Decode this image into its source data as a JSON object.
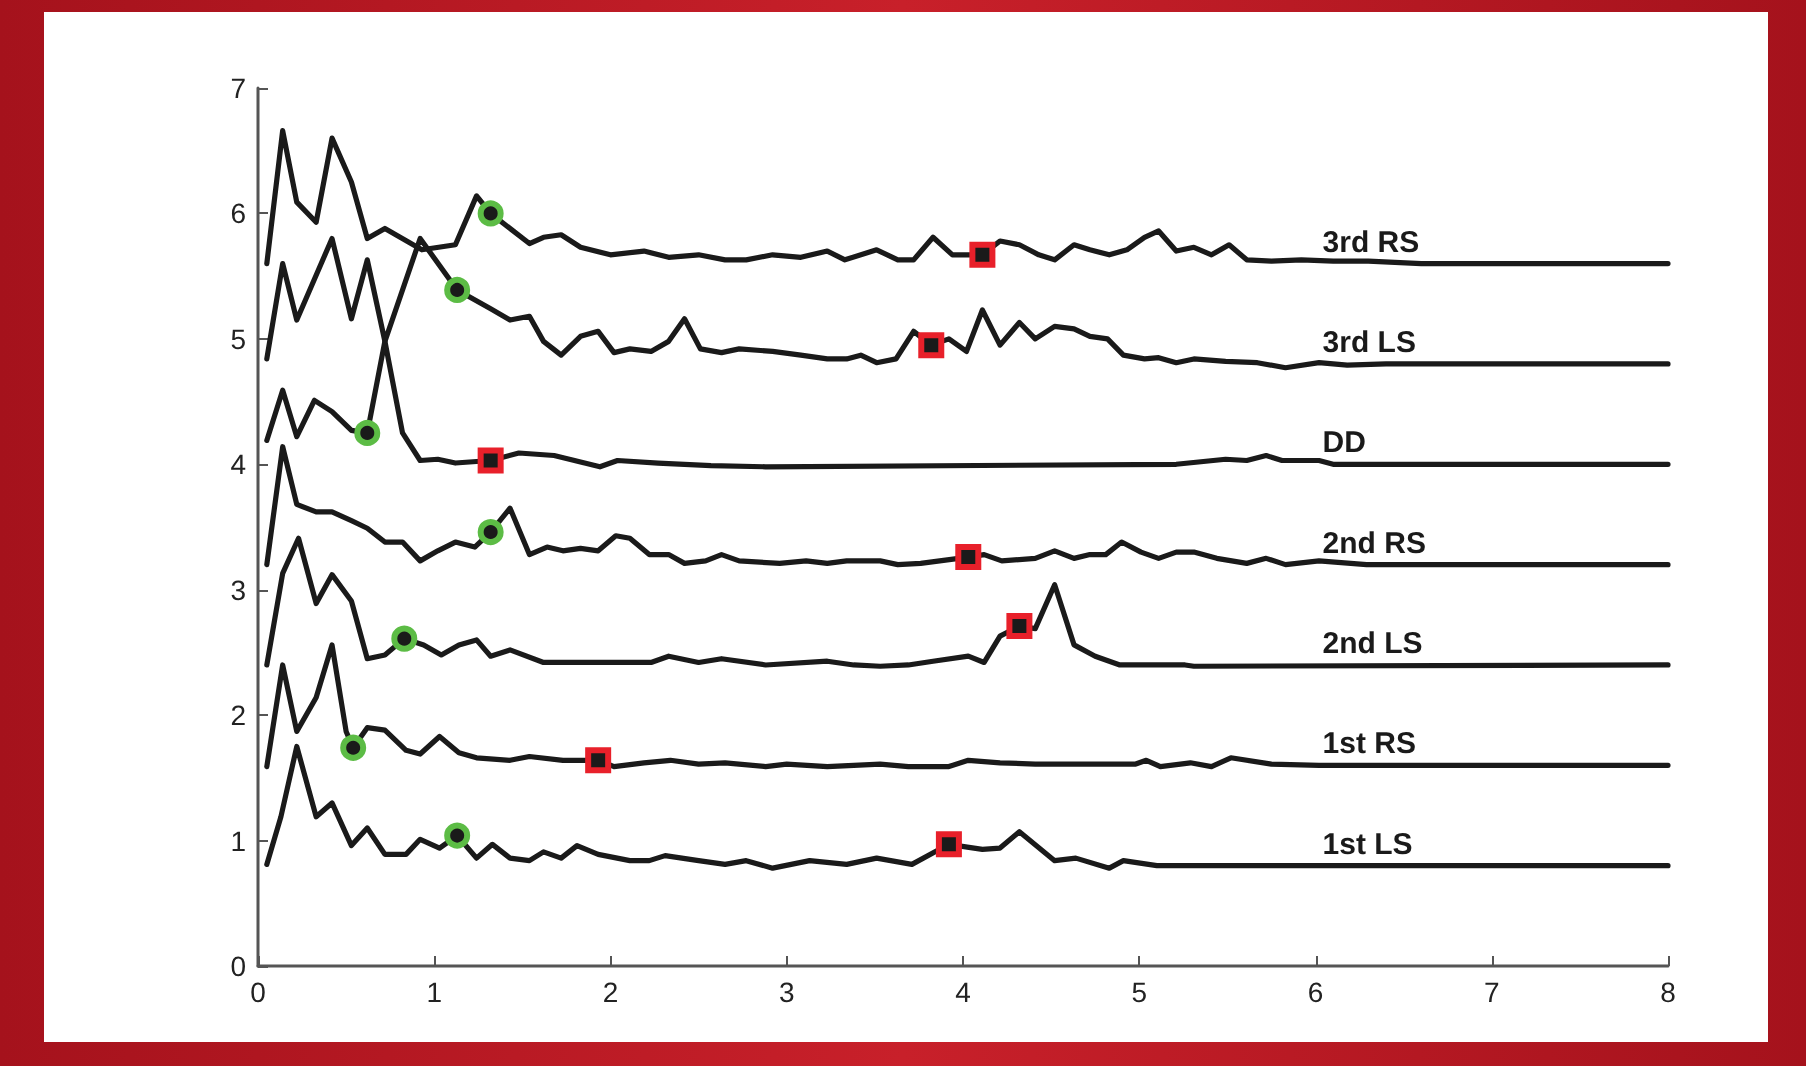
{
  "chart_data": {
    "type": "line",
    "xlim": [
      0,
      8
    ],
    "ylim": [
      0,
      7
    ],
    "xticks": [
      0,
      1,
      2,
      3,
      4,
      5,
      6,
      7,
      8
    ],
    "yticks": [
      0,
      1,
      2,
      3,
      4,
      5,
      6,
      7
    ],
    "grid": false,
    "legend": false,
    "marker": "none",
    "line_style": "solid",
    "series": [
      {
        "name": "3rd RS",
        "color": "#1a1a1a",
        "x": [
          0.05,
          0.14,
          0.22,
          0.33,
          0.42,
          0.53,
          0.62,
          0.72,
          0.93,
          1.12,
          1.24,
          1.32,
          1.54,
          1.62,
          1.72,
          1.83,
          2.0,
          2.19,
          2.33,
          2.5,
          2.65,
          2.77,
          2.92,
          3.08,
          3.23,
          3.33,
          3.51,
          3.63,
          3.72,
          3.83,
          3.94,
          4.11,
          4.21,
          4.32,
          4.43,
          4.52,
          4.63,
          4.72,
          4.83,
          4.93,
          5.03,
          5.11,
          5.21,
          5.31,
          5.41,
          5.51,
          5.61,
          5.75,
          5.92,
          6.1,
          6.3,
          6.6,
          8
        ],
        "values": [
          5.6,
          6.66,
          6.09,
          5.93,
          6.6,
          6.25,
          5.8,
          5.88,
          5.71,
          5.75,
          6.14,
          6.0,
          5.76,
          5.81,
          5.83,
          5.73,
          5.67,
          5.7,
          5.65,
          5.67,
          5.63,
          5.63,
          5.67,
          5.65,
          5.7,
          5.63,
          5.71,
          5.63,
          5.63,
          5.81,
          5.67,
          5.67,
          5.78,
          5.75,
          5.67,
          5.63,
          5.75,
          5.71,
          5.67,
          5.71,
          5.81,
          5.86,
          5.7,
          5.73,
          5.67,
          5.75,
          5.63,
          5.62,
          5.63,
          5.62,
          5.62,
          5.6,
          5.6
        ]
      },
      {
        "name": "3rd LS",
        "color": "#1a1a1a",
        "x": [
          0.05,
          0.14,
          0.22,
          0.42,
          0.53,
          0.62,
          0.72,
          0.92,
          1.13,
          1.32,
          1.43,
          1.54,
          1.62,
          1.72,
          1.83,
          1.93,
          2.02,
          2.11,
          2.23,
          2.33,
          2.42,
          2.51,
          2.63,
          2.73,
          2.92,
          3.08,
          3.23,
          3.34,
          3.42,
          3.51,
          3.62,
          3.72,
          3.82,
          3.92,
          4.02,
          4.11,
          4.21,
          4.32,
          4.41,
          4.52,
          4.63,
          4.72,
          4.82,
          4.91,
          5.03,
          5.11,
          5.21,
          5.31,
          5.49,
          5.67,
          5.83,
          6.02,
          6.18,
          6.4,
          8
        ],
        "values": [
          4.84,
          5.6,
          5.15,
          5.8,
          5.16,
          5.63,
          4.98,
          5.8,
          5.39,
          5.24,
          5.15,
          5.18,
          4.98,
          4.87,
          5.02,
          5.06,
          4.89,
          4.92,
          4.9,
          4.98,
          5.16,
          4.92,
          4.89,
          4.92,
          4.9,
          4.87,
          4.84,
          4.84,
          4.87,
          4.81,
          4.84,
          5.06,
          4.95,
          5.0,
          4.9,
          5.23,
          4.95,
          5.13,
          5.0,
          5.1,
          5.08,
          5.02,
          5.0,
          4.87,
          4.84,
          4.85,
          4.81,
          4.84,
          4.82,
          4.81,
          4.77,
          4.81,
          4.79,
          4.8,
          4.8
        ]
      },
      {
        "name": "DD",
        "color": "#1a1a1a",
        "x": [
          0.05,
          0.14,
          0.22,
          0.32,
          0.42,
          0.53,
          0.62,
          0.72,
          0.82,
          0.92,
          1.02,
          1.12,
          1.32,
          1.48,
          1.68,
          1.94,
          2.04,
          2.27,
          2.57,
          2.88,
          5.21,
          5.49,
          5.61,
          5.72,
          5.81,
          6.02,
          6.1,
          8
        ],
        "values": [
          4.19,
          4.59,
          4.22,
          4.51,
          4.42,
          4.27,
          4.25,
          4.98,
          4.25,
          4.03,
          4.04,
          4.01,
          4.03,
          4.09,
          4.07,
          3.98,
          4.03,
          4.01,
          3.99,
          3.98,
          4.0,
          4.04,
          4.03,
          4.07,
          4.03,
          4.03,
          4.0,
          4.0
        ]
      },
      {
        "name": "2nd RS",
        "color": "#1a1a1a",
        "x": [
          0.05,
          0.14,
          0.22,
          0.33,
          0.42,
          0.53,
          0.62,
          0.72,
          0.82,
          0.92,
          1.02,
          1.12,
          1.23,
          1.32,
          1.43,
          1.54,
          1.64,
          1.73,
          1.83,
          1.93,
          2.03,
          2.11,
          2.22,
          2.33,
          2.42,
          2.54,
          2.63,
          2.73,
          2.96,
          3.11,
          3.23,
          3.34,
          3.53,
          3.63,
          3.76,
          4.03,
          4.12,
          4.22,
          4.41,
          4.52,
          4.63,
          4.72,
          4.81,
          4.9,
          5.01,
          5.11,
          5.21,
          5.31,
          5.44,
          5.61,
          5.72,
          5.83,
          6.02,
          6.29,
          8
        ],
        "values": [
          3.2,
          4.14,
          3.68,
          3.62,
          3.62,
          3.55,
          3.49,
          3.38,
          3.38,
          3.23,
          3.31,
          3.38,
          3.34,
          3.46,
          3.65,
          3.28,
          3.34,
          3.31,
          3.33,
          3.31,
          3.43,
          3.41,
          3.28,
          3.28,
          3.21,
          3.23,
          3.28,
          3.23,
          3.21,
          3.23,
          3.21,
          3.23,
          3.23,
          3.2,
          3.21,
          3.26,
          3.28,
          3.23,
          3.25,
          3.31,
          3.25,
          3.28,
          3.28,
          3.38,
          3.3,
          3.25,
          3.3,
          3.3,
          3.25,
          3.21,
          3.25,
          3.2,
          3.23,
          3.2,
          3.2
        ]
      },
      {
        "name": "2nd LS",
        "color": "#1a1a1a",
        "x": [
          0.05,
          0.14,
          0.23,
          0.33,
          0.42,
          0.53,
          0.62,
          0.72,
          0.83,
          0.94,
          1.04,
          1.14,
          1.24,
          1.32,
          1.43,
          1.62,
          2.23,
          2.33,
          2.5,
          2.63,
          2.88,
          3.23,
          3.38,
          3.53,
          3.69,
          3.83,
          4.03,
          4.12,
          4.21,
          4.32,
          4.41,
          4.52,
          4.63,
          4.75,
          4.89,
          5.26,
          5.31,
          8
        ],
        "values": [
          2.4,
          3.13,
          3.41,
          2.89,
          3.12,
          2.91,
          2.45,
          2.48,
          2.61,
          2.56,
          2.48,
          2.56,
          2.6,
          2.47,
          2.52,
          2.42,
          2.42,
          2.47,
          2.42,
          2.45,
          2.4,
          2.43,
          2.4,
          2.39,
          2.4,
          2.43,
          2.47,
          2.42,
          2.63,
          2.71,
          2.69,
          3.04,
          2.56,
          2.47,
          2.4,
          2.4,
          2.39,
          2.4
        ]
      },
      {
        "name": "1st RS",
        "color": "#1a1a1a",
        "x": [
          0.05,
          0.14,
          0.22,
          0.33,
          0.42,
          0.5,
          0.54,
          0.62,
          0.72,
          0.84,
          0.92,
          1.03,
          1.14,
          1.24,
          1.43,
          1.54,
          1.73,
          1.93,
          2.02,
          2.19,
          2.34,
          2.5,
          2.65,
          2.88,
          3.0,
          3.23,
          3.53,
          3.69,
          3.92,
          4.03,
          4.21,
          4.41,
          4.68,
          4.98,
          5.04,
          5.12,
          5.29,
          5.41,
          5.52,
          5.75,
          6.02,
          8
        ],
        "values": [
          1.59,
          2.4,
          1.87,
          2.14,
          2.56,
          1.87,
          1.74,
          1.9,
          1.88,
          1.72,
          1.69,
          1.83,
          1.7,
          1.66,
          1.64,
          1.67,
          1.64,
          1.64,
          1.59,
          1.62,
          1.64,
          1.61,
          1.62,
          1.59,
          1.61,
          1.59,
          1.61,
          1.59,
          1.59,
          1.64,
          1.62,
          1.61,
          1.61,
          1.61,
          1.64,
          1.59,
          1.62,
          1.59,
          1.66,
          1.61,
          1.6,
          1.6
        ]
      },
      {
        "name": "1st LS",
        "color": "#1a1a1a",
        "x": [
          0.05,
          0.13,
          0.22,
          0.33,
          0.42,
          0.53,
          0.62,
          0.72,
          0.84,
          0.92,
          1.03,
          1.13,
          1.24,
          1.33,
          1.43,
          1.54,
          1.62,
          1.72,
          1.81,
          1.93,
          2.11,
          2.22,
          2.31,
          2.5,
          2.65,
          2.77,
          2.92,
          3.13,
          3.34,
          3.51,
          3.71,
          3.92,
          4.11,
          4.21,
          4.32,
          4.52,
          4.64,
          4.83,
          4.91,
          5.1,
          8
        ],
        "values": [
          0.81,
          1.19,
          1.75,
          1.19,
          1.3,
          0.96,
          1.1,
          0.89,
          0.89,
          1.01,
          0.94,
          1.04,
          0.86,
          0.97,
          0.86,
          0.84,
          0.91,
          0.86,
          0.96,
          0.89,
          0.84,
          0.84,
          0.88,
          0.84,
          0.81,
          0.84,
          0.78,
          0.84,
          0.81,
          0.86,
          0.81,
          0.97,
          0.93,
          0.94,
          1.07,
          0.84,
          0.86,
          0.78,
          0.84,
          0.8,
          0.8
        ]
      },
      {
        "type": "scatter",
        "marker": "circle",
        "color": "#5cbc45",
        "x": [
          1.32,
          1.13,
          0.62,
          1.32,
          0.83,
          0.54,
          1.13
        ],
        "values": [
          6.0,
          5.39,
          4.25,
          3.46,
          2.61,
          1.74,
          1.04
        ]
      },
      {
        "type": "scatter",
        "marker": "square",
        "color": "#e8202a",
        "x": [
          4.11,
          3.82,
          1.32,
          4.03,
          4.32,
          1.93,
          3.92
        ],
        "values": [
          5.67,
          4.95,
          4.03,
          3.26,
          2.71,
          1.64,
          0.97
        ]
      }
    ]
  }
}
